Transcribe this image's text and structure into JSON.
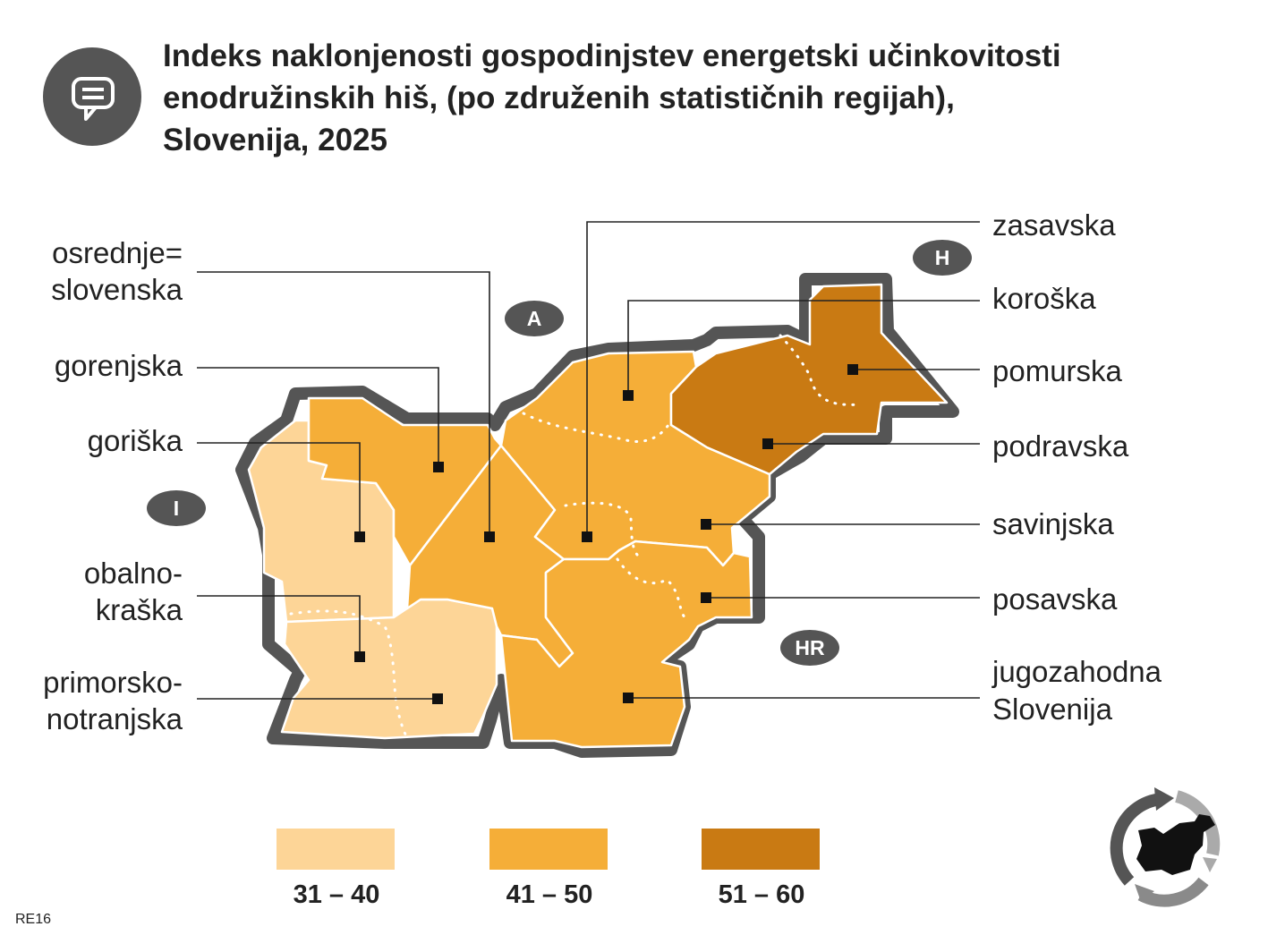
{
  "title_lines": [
    "Indeks naklonjenosti gospodinjstev energetski učinkovitosti",
    "enodružinskih hiš, (po združenih statističnih regijah),",
    "Slovenija, 2025"
  ],
  "colors": {
    "low": "#fdd597",
    "mid": "#f5ae38",
    "high": "#c97a13",
    "outline": "#555555",
    "badge": "#555555"
  },
  "countries": {
    "austria": "A",
    "hungary": "H",
    "italy": "I",
    "croatia": "HR"
  },
  "labels_left": {
    "osrednjeslovenska_l1": "osrednje=",
    "osrednjeslovenska_l2": "slovenska",
    "gorenjska": "gorenjska",
    "goriska": "goriška",
    "obalnokraska_l1": "obalno-",
    "obalnokraska_l2": "kraška",
    "primorskonotranjska_l1": "primorsko-",
    "primorskonotranjska_l2": "notranjska"
  },
  "labels_right": {
    "zasavska": "zasavska",
    "koroska": "koroška",
    "pomurska": "pomurska",
    "podravska": "podravska",
    "savinjska": "savinjska",
    "posavska": "posavska",
    "jugovzhodna_l1": "jugozahodna",
    "jugovzhodna_l2": "Slovenija"
  },
  "legend": [
    {
      "label": "31 – 40",
      "color": "#fdd597"
    },
    {
      "label": "41 – 50",
      "color": "#f5ae38"
    },
    {
      "label": "51 – 60",
      "color": "#c97a13"
    }
  ],
  "regions": [
    {
      "key": "goriska",
      "category": "31 – 40"
    },
    {
      "key": "obalno-kraska_primorsko-notranjska",
      "category": "31 – 40"
    },
    {
      "key": "gorenjska",
      "category": "41 – 50"
    },
    {
      "key": "osrednjeslovenska",
      "category": "41 – 50"
    },
    {
      "key": "koroska_savinjska_zasavska",
      "category": "41 – 50"
    },
    {
      "key": "posavska_jugovzhodna",
      "category": "41 – 50"
    },
    {
      "key": "podravska_pomurska",
      "category": "51 – 60"
    }
  ],
  "code": "RE16"
}
